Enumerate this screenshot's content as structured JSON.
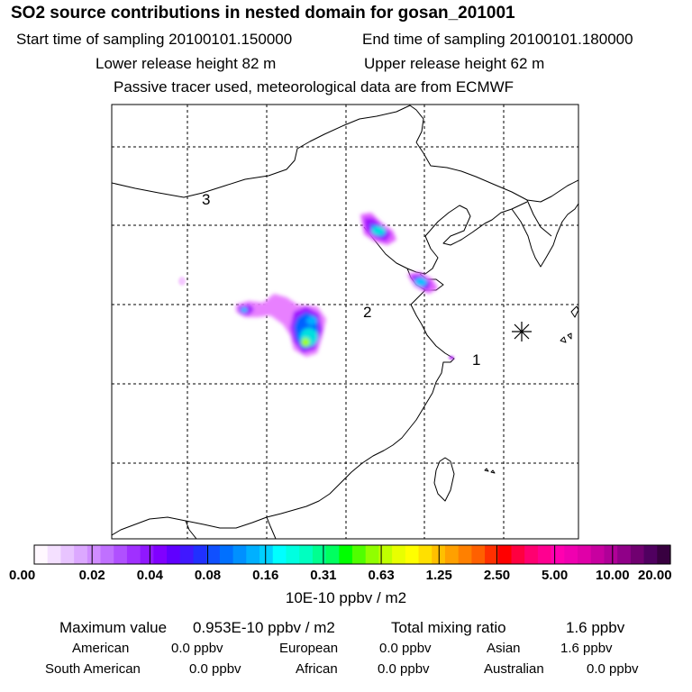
{
  "header": {
    "title": "SO2 source contributions in nested domain for gosan_201001",
    "start_time": "Start time of sampling 20100101.150000",
    "end_time": "End time of sampling 20100101.180000",
    "lower_release": "Lower release height   82 m",
    "upper_release": "Upper release height   62 m",
    "note": "Passive tracer used, meteorological data are from ECMWF"
  },
  "map": {
    "region_labels": [
      "1",
      "2",
      "3"
    ],
    "receptor_marker": "asterisk",
    "plume_colors": [
      "#e060ff",
      "#a000ff",
      "#0060ff",
      "#00e0e0",
      "#a0ff00"
    ]
  },
  "colorbar": {
    "tick_labels": [
      "0.00",
      "0.02",
      "0.04",
      "0.08",
      "0.16",
      "0.31",
      "0.63",
      "1.25",
      "2.50",
      "5.00",
      "10.00",
      "20.00"
    ],
    "colors": [
      "#fff8ff",
      "#f4e0ff",
      "#e8c4ff",
      "#dca8ff",
      "#d08cff",
      "#c070ff",
      "#b050ff",
      "#a030ff",
      "#9018ff",
      "#8000ff",
      "#6000ff",
      "#4018ff",
      "#2030ff",
      "#1050ff",
      "#0070ff",
      "#0090ff",
      "#00b0ff",
      "#00d0ff",
      "#00ffff",
      "#00ffe0",
      "#00ffc0",
      "#00ff90",
      "#00ff60",
      "#00ff00",
      "#50ff00",
      "#90ff00",
      "#c0ff00",
      "#e8ff00",
      "#ffff00",
      "#ffe000",
      "#ffc000",
      "#ffa000",
      "#ff8000",
      "#ff6000",
      "#ff3000",
      "#ff0000",
      "#ff0040",
      "#ff0070",
      "#ff0090",
      "#ff00b0",
      "#f000b0",
      "#e000a8",
      "#c800a0",
      "#b00098",
      "#900088",
      "#700070",
      "#500060",
      "#380040"
    ],
    "unit": "10E-10 ppbv / m2"
  },
  "summary": {
    "max_label": "Maximum value",
    "max_value": "0.953E-10 ppbv / m2",
    "total_label": "Total mixing ratio",
    "total_value": "1.6 ppbv",
    "regions": [
      {
        "name": "American",
        "value": "0.0 ppbv"
      },
      {
        "name": "European",
        "value": "0.0 ppbv"
      },
      {
        "name": "Asian",
        "value": "1.6 ppbv"
      },
      {
        "name": "South American",
        "value": "0.0 ppbv"
      },
      {
        "name": "African",
        "value": "0.0 ppbv"
      },
      {
        "name": "Australian",
        "value": "0.0 ppbv"
      }
    ]
  }
}
